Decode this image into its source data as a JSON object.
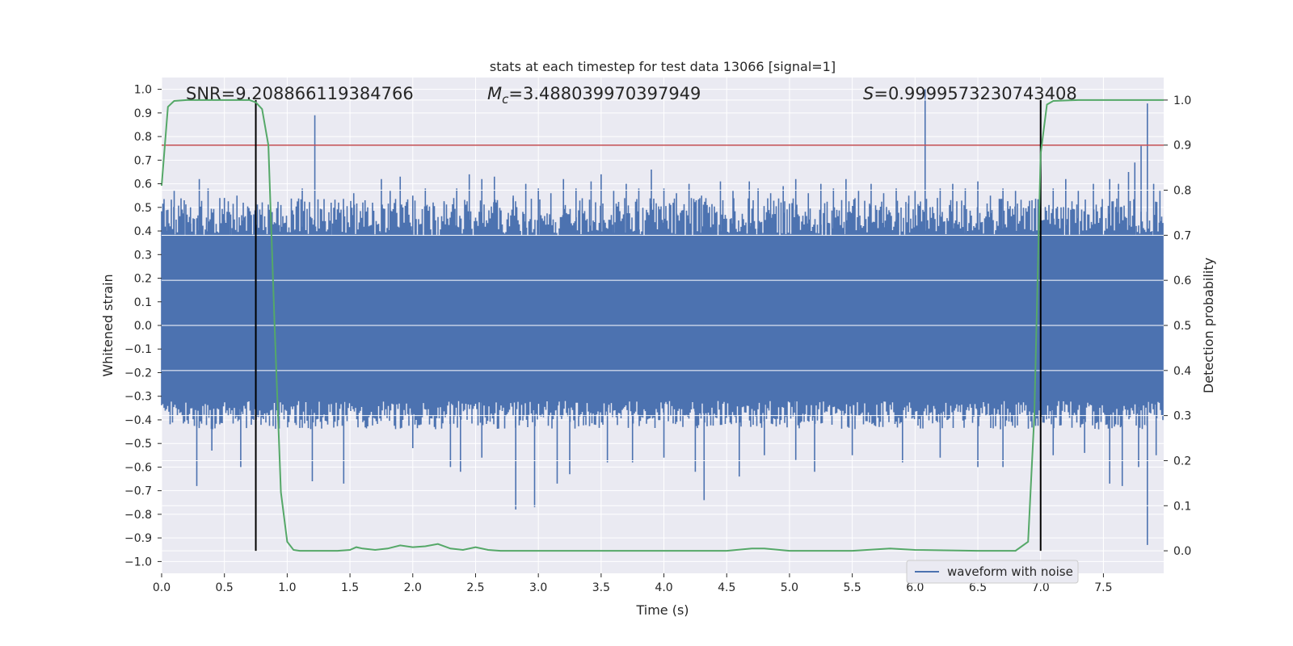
{
  "chart_data": {
    "type": "line",
    "title": "stats at each timestep for test data 13066 [signal=1]",
    "xlabel": "Time (s)",
    "ylabel": "Whitened strain",
    "y2label": "Detection probability",
    "xlim": [
      0.0,
      7.98
    ],
    "ylim": [
      -1.05,
      1.05
    ],
    "y2lim": [
      -0.05,
      1.05
    ],
    "xticks": [
      0.0,
      0.5,
      1.0,
      1.5,
      2.0,
      2.5,
      3.0,
      3.5,
      4.0,
      4.5,
      5.0,
      5.5,
      6.0,
      6.5,
      7.0,
      7.5
    ],
    "xtick_labels": [
      "0.0",
      "0.5",
      "1.0",
      "1.5",
      "2.0",
      "2.5",
      "3.0",
      "3.5",
      "4.0",
      "4.5",
      "5.0",
      "5.5",
      "6.0",
      "6.5",
      "7.0",
      "7.5"
    ],
    "yticks": [
      1.0,
      0.9,
      0.8,
      0.7,
      0.6,
      0.5,
      0.4,
      0.3,
      0.2,
      0.1,
      0.0,
      -0.1,
      -0.2,
      -0.3,
      -0.4,
      -0.5,
      -0.6,
      -0.7,
      -0.8,
      -0.9,
      -1.0
    ],
    "ytick_labels": [
      "1.0",
      "0.9",
      "0.8",
      "0.7",
      "0.6",
      "0.5",
      "0.4",
      "0.3",
      "0.2",
      "0.1",
      "0.0",
      "−0.1",
      "−0.2",
      "−0.3",
      "−0.4",
      "−0.5",
      "−0.6",
      "−0.7",
      "−0.8",
      "−0.9",
      "−1.0"
    ],
    "y2ticks": [
      1.0,
      0.9,
      0.8,
      0.7,
      0.6,
      0.5,
      0.4,
      0.3,
      0.2,
      0.1,
      0.0
    ],
    "y2tick_labels": [
      "1.0",
      "0.9",
      "0.8",
      "0.7",
      "0.6",
      "0.5",
      "0.4",
      "0.3",
      "0.2",
      "0.1",
      "0.0"
    ],
    "grid": true,
    "legend": {
      "placement": "lower-right",
      "entries": [
        "waveform with noise"
      ]
    },
    "annotations": {
      "snr": "SNR=9.208866119384766",
      "mc_symbol": "M",
      "mc_sub": "c",
      "mc_value": "=3.488039970397949",
      "s_symbol": "S",
      "s_value": "=0.9999573230743408"
    },
    "threshold": {
      "axis": "y2",
      "value": 0.9,
      "color": "#c44e52"
    },
    "vlines": [
      0.75,
      7.0
    ],
    "waveform": {
      "name": "waveform with noise",
      "color": "#4c72b0",
      "background_range": [
        -0.32,
        0.38
      ],
      "spikes": [
        [
          0.05,
          0.49
        ],
        [
          0.1,
          0.57
        ],
        [
          0.18,
          0.53
        ],
        [
          0.23,
          0.5
        ],
        [
          0.3,
          0.62
        ],
        [
          0.37,
          0.58
        ],
        [
          0.5,
          0.54
        ],
        [
          0.55,
          0.47
        ],
        [
          0.6,
          0.55
        ],
        [
          0.65,
          0.52
        ],
        [
          0.88,
          0.48
        ],
        [
          0.95,
          0.51
        ],
        [
          1.05,
          0.47
        ],
        [
          1.12,
          0.58
        ],
        [
          1.22,
          0.89
        ],
        [
          1.35,
          0.52
        ],
        [
          1.45,
          0.49
        ],
        [
          1.53,
          0.56
        ],
        [
          1.62,
          0.53
        ],
        [
          1.75,
          0.62
        ],
        [
          1.82,
          0.57
        ],
        [
          1.9,
          0.63
        ],
        [
          2.0,
          0.55
        ],
        [
          2.1,
          0.58
        ],
        [
          2.25,
          0.52
        ],
        [
          2.35,
          0.58
        ],
        [
          2.45,
          0.64
        ],
        [
          2.55,
          0.62
        ],
        [
          2.65,
          0.63
        ],
        [
          2.8,
          0.55
        ],
        [
          2.9,
          0.6
        ],
        [
          3.0,
          0.58
        ],
        [
          3.1,
          0.56
        ],
        [
          3.2,
          0.62
        ],
        [
          3.3,
          0.58
        ],
        [
          3.42,
          0.61
        ],
        [
          3.5,
          0.64
        ],
        [
          3.6,
          0.57
        ],
        [
          3.7,
          0.6
        ],
        [
          3.8,
          0.58
        ],
        [
          3.9,
          0.66
        ],
        [
          4.0,
          0.58
        ],
        [
          4.1,
          0.56
        ],
        [
          4.2,
          0.6
        ],
        [
          4.3,
          0.55
        ],
        [
          4.45,
          0.61
        ],
        [
          4.55,
          0.57
        ],
        [
          4.68,
          0.61
        ],
        [
          4.75,
          0.58
        ],
        [
          4.85,
          0.56
        ],
        [
          4.95,
          0.59
        ],
        [
          5.05,
          0.62
        ],
        [
          5.15,
          0.56
        ],
        [
          5.25,
          0.6
        ],
        [
          5.35,
          0.58
        ],
        [
          5.45,
          0.62
        ],
        [
          5.55,
          0.57
        ],
        [
          5.65,
          0.6
        ],
        [
          5.75,
          0.56
        ],
        [
          5.85,
          0.58
        ],
        [
          5.95,
          0.55
        ],
        [
          6.0,
          0.57
        ],
        [
          6.08,
          1.0
        ],
        [
          6.2,
          0.58
        ],
        [
          6.3,
          0.6
        ],
        [
          6.4,
          0.58
        ],
        [
          6.5,
          0.61
        ],
        [
          6.6,
          0.55
        ],
        [
          6.7,
          0.58
        ],
        [
          6.8,
          0.57
        ],
        [
          7.1,
          0.58
        ],
        [
          7.2,
          0.62
        ],
        [
          7.3,
          0.57
        ],
        [
          7.42,
          0.6
        ],
        [
          7.55,
          0.62
        ],
        [
          7.62,
          0.6
        ],
        [
          7.7,
          0.65
        ],
        [
          7.75,
          0.69
        ],
        [
          7.8,
          0.76
        ],
        [
          7.85,
          0.94
        ],
        [
          7.9,
          0.6
        ],
        [
          7.95,
          0.57
        ],
        [
          0.28,
          -0.68
        ],
        [
          0.4,
          -0.53
        ],
        [
          0.63,
          -0.6
        ],
        [
          1.2,
          -0.66
        ],
        [
          1.45,
          -0.67
        ],
        [
          2.0,
          -0.52
        ],
        [
          2.3,
          -0.6
        ],
        [
          2.38,
          -0.62
        ],
        [
          2.55,
          -0.56
        ],
        [
          2.82,
          -0.78
        ],
        [
          2.97,
          -0.77
        ],
        [
          3.15,
          -0.67
        ],
        [
          3.25,
          -0.63
        ],
        [
          3.55,
          -0.58
        ],
        [
          3.75,
          -0.58
        ],
        [
          4.0,
          -0.56
        ],
        [
          4.25,
          -0.62
        ],
        [
          4.32,
          -0.74
        ],
        [
          4.6,
          -0.64
        ],
        [
          4.8,
          -0.55
        ],
        [
          5.05,
          -0.57
        ],
        [
          5.2,
          -0.62
        ],
        [
          5.5,
          -0.55
        ],
        [
          5.9,
          -0.58
        ],
        [
          6.2,
          -0.56
        ],
        [
          6.5,
          -0.6
        ],
        [
          6.7,
          -0.6
        ],
        [
          7.1,
          -0.55
        ],
        [
          7.35,
          -0.54
        ],
        [
          7.55,
          -0.67
        ],
        [
          7.65,
          -0.68
        ],
        [
          7.78,
          -0.6
        ],
        [
          7.85,
          -0.93
        ],
        [
          7.92,
          -0.55
        ]
      ]
    },
    "detection": {
      "name": "detection probability",
      "color": "#55a868",
      "x": [
        0.0,
        0.05,
        0.1,
        0.2,
        0.3,
        0.4,
        0.5,
        0.6,
        0.7,
        0.75,
        0.8,
        0.85,
        0.9,
        0.95,
        1.0,
        1.05,
        1.1,
        1.2,
        1.3,
        1.4,
        1.5,
        1.55,
        1.6,
        1.7,
        1.8,
        1.9,
        2.0,
        2.1,
        2.2,
        2.3,
        2.4,
        2.5,
        2.6,
        2.7,
        3.0,
        3.5,
        4.0,
        4.5,
        4.7,
        4.8,
        5.0,
        5.5,
        5.8,
        6.0,
        6.5,
        6.8,
        6.9,
        6.95,
        7.0,
        7.05,
        7.1,
        7.3,
        7.98
      ],
      "y": [
        0.81,
        0.985,
        0.998,
        1.0,
        1.0,
        1.0,
        1.0,
        1.0,
        1.0,
        0.995,
        0.98,
        0.9,
        0.5,
        0.13,
        0.02,
        0.002,
        0.0,
        0.0,
        0.0,
        0.0,
        0.002,
        0.008,
        0.005,
        0.002,
        0.005,
        0.012,
        0.008,
        0.01,
        0.015,
        0.005,
        0.002,
        0.008,
        0.002,
        0.0,
        0.0,
        0.0,
        0.0,
        0.0,
        0.005,
        0.005,
        0.0,
        0.0,
        0.005,
        0.002,
        0.0,
        0.0,
        0.02,
        0.3,
        0.88,
        0.99,
        0.998,
        1.0,
        1.0
      ]
    }
  }
}
